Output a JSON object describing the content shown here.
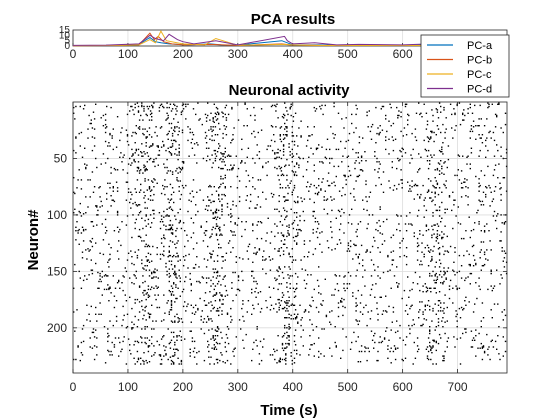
{
  "chart_data": [
    {
      "type": "line",
      "title": "PCA results",
      "xlabel": "",
      "ylabel": "",
      "xlim": [
        0,
        790
      ],
      "ylim": [
        0,
        15
      ],
      "xticks": [
        0,
        100,
        200,
        300,
        400,
        500,
        600
      ],
      "yticks": [
        0,
        5,
        10,
        15
      ],
      "legend_placement": "overlapping top-right",
      "series": [
        {
          "name": "PC-a",
          "color": "#0072BD",
          "x": [
            0,
            60,
            120,
            140,
            150,
            160,
            175,
            190,
            210,
            250,
            270,
            300,
            380,
            390,
            400,
            450,
            500,
            520,
            600,
            650,
            700,
            790
          ],
          "y": [
            0.5,
            0.6,
            1.5,
            8,
            4,
            3,
            2,
            1.5,
            1,
            2,
            1,
            0.8,
            5,
            3,
            1,
            1,
            0.6,
            1,
            0.6,
            1,
            0.5,
            0.5
          ]
        },
        {
          "name": "PC-b",
          "color": "#D95319",
          "x": [
            0,
            60,
            120,
            140,
            148,
            155,
            165,
            180,
            200,
            250,
            300,
            380,
            395,
            450,
            500,
            600,
            700,
            790
          ],
          "y": [
            0.3,
            0.5,
            1,
            12,
            6,
            9,
            4,
            2,
            1,
            1.5,
            0.6,
            2,
            1,
            0.6,
            0.5,
            0.5,
            0.5,
            0.3
          ]
        },
        {
          "name": "PC-c",
          "color": "#EDB120",
          "x": [
            0,
            60,
            120,
            140,
            150,
            160,
            170,
            200,
            240,
            260,
            300,
            380,
            400,
            450,
            600,
            700,
            790
          ],
          "y": [
            0.4,
            0.5,
            1,
            6,
            3,
            14,
            5,
            2,
            1,
            7,
            0.7,
            1.5,
            1,
            0.5,
            0.5,
            0.5,
            0.4
          ]
        },
        {
          "name": "PC-d",
          "color": "#7E2F8E",
          "x": [
            0,
            60,
            120,
            140,
            150,
            165,
            175,
            190,
            200,
            220,
            260,
            300,
            385,
            390,
            400,
            440,
            480,
            520,
            600,
            650,
            700,
            790
          ],
          "y": [
            0.6,
            0.8,
            2,
            10,
            7,
            5,
            11,
            6,
            4,
            2,
            5,
            1,
            9,
            5,
            2,
            3,
            1,
            1.5,
            1,
            2,
            1,
            0.6
          ]
        }
      ]
    },
    {
      "type": "scatter",
      "title": "Neuronal activity",
      "xlabel": "Time (s)",
      "ylabel": "Neuron#",
      "xlim": [
        0,
        790
      ],
      "ylim": [
        0,
        240
      ],
      "y_reversed": true,
      "xticks": [
        0,
        100,
        200,
        300,
        400,
        500,
        600,
        700
      ],
      "yticks": [
        50,
        100,
        150,
        200
      ],
      "grid": true,
      "marker_color": "#000000",
      "note_bursts_at_time": [
        130,
        180,
        260,
        390,
        660
      ]
    }
  ]
}
